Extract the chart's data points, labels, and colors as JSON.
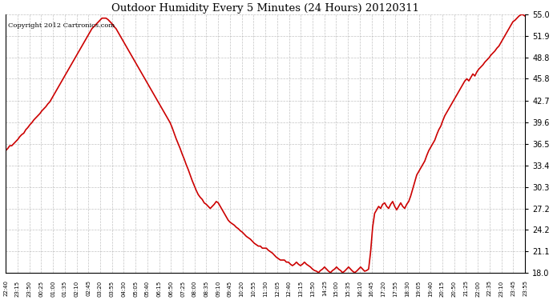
{
  "title": "Outdoor Humidity Every 5 Minutes (24 Hours) 20120311",
  "copyright_text": "Copyright 2012 Cartronics.com",
  "background_color": "#ffffff",
  "plot_bg_color": "#ffffff",
  "grid_color": "#aaaaaa",
  "line_color": "#cc0000",
  "line_width": 1.2,
  "ylim": [
    18.0,
    55.0
  ],
  "yticks": [
    18.0,
    21.1,
    24.2,
    27.2,
    30.3,
    33.4,
    36.5,
    39.6,
    42.7,
    45.8,
    48.8,
    51.9,
    55.0
  ],
  "x_labels": [
    "22:40",
    "23:15",
    "23:50",
    "00:25",
    "01:00",
    "01:35",
    "02:10",
    "02:45",
    "03:20",
    "03:55",
    "04:30",
    "05:05",
    "05:40",
    "06:15",
    "06:50",
    "07:25",
    "08:00",
    "08:35",
    "09:10",
    "09:45",
    "10:20",
    "10:55",
    "11:30",
    "12:05",
    "12:40",
    "13:15",
    "13:50",
    "14:25",
    "15:00",
    "15:35",
    "16:10",
    "16:45",
    "17:20",
    "17:55",
    "18:30",
    "19:05",
    "19:40",
    "20:15",
    "20:50",
    "21:25",
    "22:00",
    "22:35",
    "23:10",
    "23:45",
    "23:55"
  ],
  "humidity_values": [
    35.5,
    35.8,
    36.2,
    36.2,
    36.5,
    36.8,
    37.1,
    37.5,
    37.8,
    38.0,
    38.5,
    38.8,
    39.2,
    39.5,
    39.9,
    40.2,
    40.5,
    40.8,
    41.2,
    41.5,
    41.8,
    42.2,
    42.5,
    43.0,
    43.5,
    44.0,
    44.5,
    45.0,
    45.5,
    46.0,
    46.5,
    47.0,
    47.5,
    48.0,
    48.5,
    49.0,
    49.5,
    50.0,
    50.5,
    51.0,
    51.5,
    52.0,
    52.5,
    53.0,
    53.3,
    53.6,
    53.9,
    54.2,
    54.5,
    54.5,
    54.5,
    54.3,
    54.0,
    53.7,
    53.3,
    53.0,
    52.5,
    52.0,
    51.5,
    51.0,
    50.5,
    50.0,
    49.5,
    49.0,
    48.5,
    48.0,
    47.5,
    47.0,
    46.5,
    46.0,
    45.5,
    45.0,
    44.5,
    44.0,
    43.5,
    43.0,
    42.5,
    42.0,
    41.5,
    41.0,
    40.5,
    40.0,
    39.5,
    38.8,
    38.0,
    37.2,
    36.5,
    35.8,
    35.0,
    34.3,
    33.5,
    32.8,
    32.0,
    31.2,
    30.5,
    29.8,
    29.2,
    28.8,
    28.5,
    28.0,
    27.8,
    27.5,
    27.2,
    27.5,
    27.8,
    28.2,
    28.0,
    27.5,
    27.0,
    26.5,
    26.0,
    25.5,
    25.2,
    25.0,
    24.8,
    24.5,
    24.3,
    24.0,
    23.8,
    23.5,
    23.2,
    23.0,
    22.8,
    22.5,
    22.2,
    22.0,
    21.8,
    21.8,
    21.5,
    21.5,
    21.5,
    21.2,
    21.0,
    20.8,
    20.5,
    20.2,
    20.0,
    19.8,
    19.8,
    19.8,
    19.5,
    19.5,
    19.2,
    19.0,
    19.2,
    19.5,
    19.2,
    19.0,
    19.2,
    19.5,
    19.2,
    19.0,
    18.8,
    18.5,
    18.3,
    18.2,
    18.0,
    18.3,
    18.5,
    18.8,
    18.5,
    18.2,
    18.0,
    18.3,
    18.5,
    18.8,
    18.5,
    18.3,
    18.0,
    18.2,
    18.5,
    18.8,
    18.5,
    18.2,
    18.0,
    18.2,
    18.5,
    18.8,
    18.5,
    18.2,
    18.3,
    18.5,
    21.0,
    24.5,
    26.5,
    27.0,
    27.5,
    27.2,
    27.8,
    28.0,
    27.5,
    27.2,
    27.8,
    28.2,
    27.5,
    27.0,
    27.5,
    28.0,
    27.5,
    27.2,
    27.8,
    28.2,
    29.0,
    30.0,
    31.0,
    32.0,
    32.5,
    33.0,
    33.5,
    34.0,
    34.8,
    35.5,
    36.0,
    36.5,
    37.0,
    37.8,
    38.5,
    39.0,
    39.8,
    40.5,
    41.0,
    41.5,
    42.0,
    42.5,
    43.0,
    43.5,
    44.0,
    44.5,
    45.0,
    45.5,
    45.8,
    45.5,
    46.0,
    46.5,
    46.2,
    46.8,
    47.2,
    47.5,
    47.8,
    48.2,
    48.5,
    48.8,
    49.2,
    49.5,
    49.8,
    50.2,
    50.5,
    51.0,
    51.5,
    52.0,
    52.5,
    53.0,
    53.5,
    54.0,
    54.2,
    54.5,
    54.8,
    55.0,
    55.0,
    54.8
  ],
  "n_xtick_labels": 45
}
